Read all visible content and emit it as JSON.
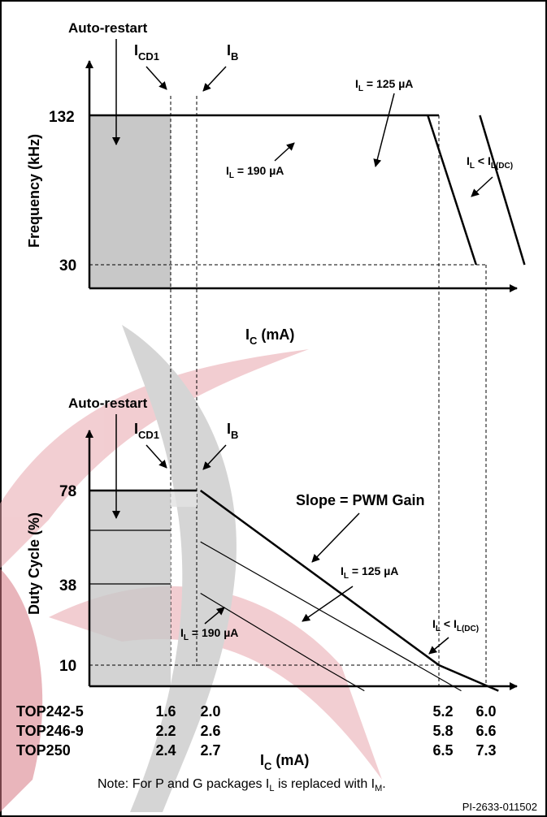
{
  "colors": {
    "ink": "#000000",
    "shade": "#c8c8c8",
    "shade_light": "#e2e2e2",
    "watermark_red": "#e8a6ad",
    "watermark_gray": "#b4b4b4"
  },
  "chart_data": [
    {
      "type": "line",
      "title": "",
      "xlabel": {
        "main": "I",
        "sub": "C",
        "rest": " (mA)"
      },
      "ylabel": "Frequency (kHz)",
      "y_ticks": [
        {
          "label": "132",
          "value": 132
        },
        {
          "label": "30",
          "value": 30
        }
      ],
      "shaded_region_label": "Auto-restart",
      "markers": [
        {
          "main": "I",
          "sub": "CD1"
        },
        {
          "main": "I",
          "sub": "B"
        }
      ],
      "series": [
        {
          "annotation": {
            "main": "I",
            "sub": "L",
            "rest": " = 190 µA"
          },
          "points": [
            [
              5.05,
              132
            ],
            [
              5.7,
              30
            ]
          ]
        },
        {
          "annotation": {
            "main": "I",
            "sub": "L",
            "rest": " = 125 µA"
          },
          "points": [
            [
              5.75,
              132
            ],
            [
              6.35,
              30
            ]
          ]
        },
        {
          "annotation": {
            "main": "I",
            "sub": "L",
            "rest": " < I",
            "sub2": "L(DC)"
          },
          "points": [
            [
              6.8,
              132
            ],
            [
              7.35,
              30
            ]
          ]
        }
      ]
    },
    {
      "type": "line",
      "title": "",
      "xlabel": {
        "main": "I",
        "sub": "C",
        "rest": " (mA)"
      },
      "ylabel": "Duty Cycle (%)",
      "y_ticks": [
        {
          "label": "78",
          "value": 78
        },
        {
          "label": "38",
          "value": 38
        },
        {
          "label": "10",
          "value": 10
        }
      ],
      "shaded_region_label": "Auto-restart",
      "markers": [
        {
          "main": "I",
          "sub": "CD1"
        },
        {
          "main": "I",
          "sub": "B"
        }
      ],
      "annotation": "Slope = PWM Gain",
      "series": [
        {
          "annotation": {
            "main": "I",
            "sub": "L",
            "rest": " < I",
            "sub2": "L(DC)"
          },
          "points": [
            [
              2.0,
              78
            ],
            [
              5.2,
              10
            ],
            [
              6.0,
              0
            ]
          ]
        },
        {
          "annotation": {
            "main": "I",
            "sub": "L",
            "rest": " = 125 µA"
          },
          "points": [
            [
              2.0,
              58
            ],
            [
              4.9,
              10
            ],
            [
              5.5,
              0
            ]
          ]
        },
        {
          "annotation": {
            "main": "I",
            "sub": "L",
            "rest": " = 190 µA"
          },
          "points": [
            [
              2.0,
              38
            ],
            [
              3.6,
              10
            ],
            [
              4.2,
              0
            ]
          ]
        }
      ],
      "table": {
        "rows": [
          {
            "device": "TOP242-5",
            "icd1": "1.6",
            "ib": "2.0",
            "ic_a": "5.2",
            "ic_b": "6.0"
          },
          {
            "device": "TOP246-9",
            "icd1": "2.2",
            "ib": "2.6",
            "ic_a": "5.8",
            "ic_b": "6.6"
          },
          {
            "device": "TOP250",
            "icd1": "2.4",
            "ib": "2.7",
            "ic_a": "6.5",
            "ic_b": "7.3"
          }
        ]
      }
    }
  ],
  "note": {
    "text": "Note: For P and G packages I",
    "sub": "L",
    "mid": " is replaced with I",
    "sub2": "M",
    "end": "."
  },
  "figure_id": "PI-2633-011502"
}
